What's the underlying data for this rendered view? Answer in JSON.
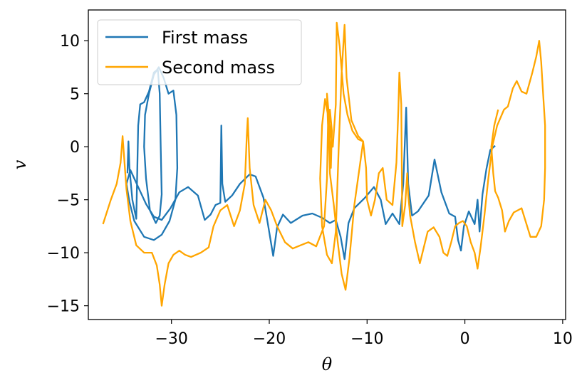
{
  "chart_data": {
    "type": "line",
    "title": "",
    "xlabel": "θ",
    "ylabel": "v",
    "xlim": [
      -38.5,
      10.3
    ],
    "ylim": [
      -16.3,
      12.9
    ],
    "xticks": [
      -30,
      -20,
      -10,
      0,
      10
    ],
    "xtick_labels": [
      "−30",
      "−20",
      "−10",
      "0",
      "10"
    ],
    "yticks": [
      -15,
      -10,
      -5,
      0,
      5,
      10
    ],
    "ytick_labels": [
      "−15",
      "−10",
      "−5",
      "0",
      "5",
      "10"
    ],
    "grid": false,
    "legend_position": "top-left",
    "series": [
      {
        "name": "First mass",
        "color": "#1f77b4",
        "points": [
          [
            -34.5,
            -2.5
          ],
          [
            -34.4,
            0.5
          ],
          [
            -34.3,
            -2
          ],
          [
            -34.0,
            -5
          ],
          [
            -33.6,
            -6.8
          ],
          [
            -33.4,
            2
          ],
          [
            -33.2,
            4
          ],
          [
            -32.8,
            4.2
          ],
          [
            -32.3,
            5.2
          ],
          [
            -31.8,
            7
          ],
          [
            -31.4,
            7.3
          ],
          [
            -31.2,
            5
          ],
          [
            -31.1,
            0
          ],
          [
            -31.0,
            -4.5
          ],
          [
            -31.2,
            -6.5
          ],
          [
            -31.6,
            -7.2
          ],
          [
            -32.2,
            -6
          ],
          [
            -32.6,
            -3
          ],
          [
            -32.8,
            0
          ],
          [
            -32.7,
            3
          ],
          [
            -32.3,
            5
          ],
          [
            -31.8,
            6.8
          ],
          [
            -31.3,
            7.5
          ],
          [
            -30.8,
            6.5
          ],
          [
            -30.3,
            5
          ],
          [
            -29.8,
            5.3
          ],
          [
            -29.5,
            3
          ],
          [
            -29.4,
            -2
          ],
          [
            -29.6,
            -5
          ],
          [
            -30.2,
            -7
          ],
          [
            -31.0,
            -8.3
          ],
          [
            -31.8,
            -8.8
          ],
          [
            -32.8,
            -8.5
          ],
          [
            -33.8,
            -7
          ],
          [
            -34.3,
            -5.2
          ],
          [
            -34.6,
            -3.5
          ],
          [
            -34.2,
            -2.2
          ],
          [
            -33.4,
            -3.8
          ],
          [
            -32.6,
            -5.4
          ],
          [
            -31.8,
            -6.6
          ],
          [
            -31.0,
            -6.9
          ],
          [
            -30.1,
            -5.8
          ],
          [
            -29.2,
            -4.3
          ],
          [
            -28.3,
            -3.8
          ],
          [
            -27.3,
            -4.6
          ],
          [
            -26.6,
            -6.9
          ],
          [
            -26.0,
            -6.4
          ],
          [
            -25.5,
            -5.5
          ],
          [
            -25.0,
            -5.3
          ],
          [
            -24.9,
            2
          ],
          [
            -24.8,
            -3.5
          ],
          [
            -24.5,
            -5.2
          ],
          [
            -23.8,
            -4.6
          ],
          [
            -23.0,
            -3.5
          ],
          [
            -22.0,
            -2.6
          ],
          [
            -21.4,
            -2.8
          ],
          [
            -20.6,
            -4.8
          ],
          [
            -20.1,
            -7.5
          ],
          [
            -19.6,
            -10.3
          ],
          [
            -19.2,
            -7.6
          ],
          [
            -18.6,
            -6.4
          ],
          [
            -17.8,
            -7.2
          ],
          [
            -16.6,
            -6.5
          ],
          [
            -15.6,
            -6.3
          ],
          [
            -14.6,
            -6.7
          ],
          [
            -13.8,
            -7.2
          ],
          [
            -13.2,
            -6.9
          ],
          [
            -12.7,
            -8.5
          ],
          [
            -12.3,
            -10.6
          ],
          [
            -11.9,
            -7.2
          ],
          [
            -11.3,
            -5.8
          ],
          [
            -10.2,
            -4.8
          ],
          [
            -9.3,
            -3.8
          ],
          [
            -8.6,
            -5
          ],
          [
            -8.1,
            -7.3
          ],
          [
            -7.4,
            -6.3
          ],
          [
            -6.7,
            -7.3
          ],
          [
            -6.3,
            -3.5
          ],
          [
            -6.0,
            3.7
          ],
          [
            -5.8,
            -3.5
          ],
          [
            -5.4,
            -6.5
          ],
          [
            -4.8,
            -6.1
          ],
          [
            -3.7,
            -4.6
          ],
          [
            -3.1,
            -1.2
          ],
          [
            -2.4,
            -4.3
          ],
          [
            -1.6,
            -6.3
          ],
          [
            -1.0,
            -6.6
          ],
          [
            -0.7,
            -8.8
          ],
          [
            -0.4,
            -9.8
          ],
          [
            -0.1,
            -7.5
          ],
          [
            0.4,
            -6.1
          ],
          [
            1.0,
            -7.3
          ],
          [
            1.3,
            -5
          ],
          [
            1.5,
            -8
          ],
          [
            1.8,
            -4.5
          ],
          [
            2.2,
            -2.1
          ],
          [
            2.6,
            -0.3
          ],
          [
            3.1,
            0.1
          ]
        ]
      },
      {
        "name": "Second mass",
        "color": "#ffa500",
        "points": [
          [
            -37.0,
            -7.3
          ],
          [
            -36.2,
            -5
          ],
          [
            -35.6,
            -3.5
          ],
          [
            -35.2,
            -1.5
          ],
          [
            -35.0,
            1
          ],
          [
            -34.8,
            -1.5
          ],
          [
            -34.6,
            -4
          ],
          [
            -34.2,
            -7
          ],
          [
            -33.6,
            -9.3
          ],
          [
            -32.8,
            -10
          ],
          [
            -32.0,
            -10
          ],
          [
            -31.5,
            -11.2
          ],
          [
            -31.2,
            -13
          ],
          [
            -31.0,
            -15
          ],
          [
            -30.7,
            -13
          ],
          [
            -30.3,
            -11
          ],
          [
            -29.8,
            -10.2
          ],
          [
            -29.2,
            -9.8
          ],
          [
            -28.6,
            -10.2
          ],
          [
            -28.0,
            -10.4
          ],
          [
            -27.0,
            -10
          ],
          [
            -26.2,
            -9.5
          ],
          [
            -25.7,
            -7.5
          ],
          [
            -25.0,
            -6
          ],
          [
            -24.3,
            -5.5
          ],
          [
            -23.6,
            -7.5
          ],
          [
            -23.0,
            -6
          ],
          [
            -22.5,
            -3.5
          ],
          [
            -22.3,
            1
          ],
          [
            -22.2,
            2.7
          ],
          [
            -22.0,
            -2
          ],
          [
            -21.6,
            -5.5
          ],
          [
            -21.0,
            -7.2
          ],
          [
            -20.4,
            -5
          ],
          [
            -19.8,
            -6
          ],
          [
            -19.2,
            -7.5
          ],
          [
            -18.4,
            -9
          ],
          [
            -17.6,
            -9.6
          ],
          [
            -16.8,
            -9.3
          ],
          [
            -16.0,
            -9
          ],
          [
            -15.2,
            -9.4
          ],
          [
            -14.4,
            -7.5
          ],
          [
            -14.1,
            -3
          ],
          [
            -14.0,
            2
          ],
          [
            -14.1,
            5
          ],
          [
            -13.9,
            3
          ],
          [
            -13.7,
            -2
          ],
          [
            -13.6,
            1.5
          ],
          [
            -13.8,
            3.5
          ],
          [
            -13.9,
            1
          ],
          [
            -13.8,
            -2.5
          ],
          [
            -13.4,
            -5.5
          ],
          [
            -13.0,
            -9
          ],
          [
            -12.6,
            -12
          ],
          [
            -12.2,
            -13.5
          ],
          [
            -11.8,
            -10.5
          ],
          [
            -11.3,
            -5.5
          ],
          [
            -10.7,
            -1.5
          ],
          [
            -10.4,
            0.5
          ],
          [
            -10.9,
            1
          ],
          [
            -11.6,
            2.5
          ],
          [
            -12.1,
            6.5
          ],
          [
            -12.3,
            11.5
          ],
          [
            -12.6,
            7
          ],
          [
            -12.9,
            0
          ],
          [
            -13.2,
            -8
          ],
          [
            -13.6,
            -11
          ],
          [
            -14.1,
            -10.2
          ],
          [
            -14.6,
            -7.5
          ],
          [
            -14.8,
            -3
          ],
          [
            -14.6,
            2
          ],
          [
            -14.3,
            4.5
          ],
          [
            -13.9,
            2.5
          ],
          [
            -13.5,
            0
          ],
          [
            -13.2,
            4
          ],
          [
            -13.1,
            11.7
          ],
          [
            -12.8,
            9.5
          ],
          [
            -12.4,
            5
          ],
          [
            -12.0,
            3
          ],
          [
            -11.5,
            1.5
          ],
          [
            -10.9,
            0.7
          ],
          [
            -10.4,
            0.5
          ],
          [
            -10.1,
            -2
          ],
          [
            -10.0,
            -5
          ],
          [
            -9.6,
            -6.5
          ],
          [
            -9.2,
            -5
          ],
          [
            -8.8,
            -2.5
          ],
          [
            -8.4,
            -2
          ],
          [
            -8.0,
            -5
          ],
          [
            -7.4,
            -5.5
          ],
          [
            -7.0,
            -1.5
          ],
          [
            -6.8,
            3.5
          ],
          [
            -6.7,
            7
          ],
          [
            -6.5,
            4
          ],
          [
            -6.4,
            -7.5
          ],
          [
            -6.1,
            -5.5
          ],
          [
            -5.9,
            -2.5
          ],
          [
            -5.8,
            -4.5
          ],
          [
            -5.6,
            -6.5
          ],
          [
            -5.1,
            -9
          ],
          [
            -4.6,
            -11
          ],
          [
            -4.2,
            -9.5
          ],
          [
            -3.8,
            -8
          ],
          [
            -3.2,
            -7.6
          ],
          [
            -2.6,
            -8.5
          ],
          [
            -2.2,
            -10
          ],
          [
            -1.8,
            -10.3
          ],
          [
            -1.4,
            -9
          ],
          [
            -1.0,
            -7.5
          ],
          [
            -0.6,
            -7.2
          ],
          [
            -0.2,
            -7
          ],
          [
            0.2,
            -7.5
          ],
          [
            0.6,
            -9
          ],
          [
            1.0,
            -10
          ],
          [
            1.3,
            -11.5
          ],
          [
            1.6,
            -9.5
          ],
          [
            2.0,
            -6.5
          ],
          [
            2.4,
            -3
          ],
          [
            2.8,
            0
          ],
          [
            3.3,
            2
          ],
          [
            4.0,
            3.5
          ],
          [
            4.4,
            3.8
          ],
          [
            4.9,
            5.5
          ],
          [
            5.3,
            6.2
          ],
          [
            5.8,
            5.2
          ],
          [
            6.3,
            5
          ],
          [
            6.9,
            7
          ],
          [
            7.3,
            8.5
          ],
          [
            7.6,
            10
          ],
          [
            7.8,
            8
          ],
          [
            8.0,
            5
          ],
          [
            8.2,
            2
          ],
          [
            8.2,
            -2
          ],
          [
            8.1,
            -5
          ],
          [
            7.8,
            -7.5
          ],
          [
            7.3,
            -8.5
          ],
          [
            6.7,
            -8.5
          ],
          [
            6.2,
            -7
          ],
          [
            5.8,
            -5.8
          ],
          [
            5.4,
            -6
          ],
          [
            5.0,
            -6.2
          ],
          [
            4.5,
            -7
          ],
          [
            4.1,
            -8
          ],
          [
            3.8,
            -6
          ],
          [
            3.4,
            -4.8
          ],
          [
            3.1,
            -4.2
          ],
          [
            2.9,
            -2.5
          ],
          [
            2.7,
            0
          ],
          [
            3.0,
            2
          ],
          [
            3.4,
            3.5
          ]
        ]
      }
    ]
  }
}
